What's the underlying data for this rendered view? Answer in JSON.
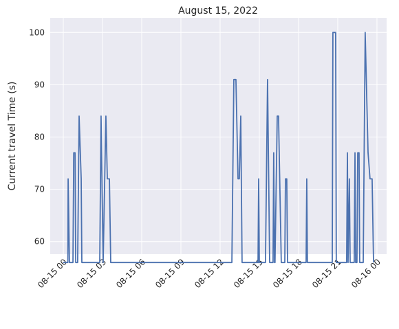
{
  "chart_data": {
    "type": "line",
    "title": "August 15, 2022",
    "y_label": "Current travel Time (s)",
    "x": [
      0,
      0.35,
      0.37,
      0.47,
      0.74,
      0.8,
      0.9,
      0.95,
      1.1,
      1.21,
      1.37,
      1.42,
      2.79,
      2.89,
      3.05,
      3.26,
      3.37,
      3.53,
      3.63,
      12.9,
      13.05,
      13.21,
      13.37,
      13.47,
      13.58,
      13.68,
      14.9,
      14.95,
      15.0,
      15.47,
      15.63,
      15.79,
      16.05,
      16.1,
      16.16,
      16.2,
      16.37,
      16.47,
      16.68,
      16.95,
      17.0,
      17.1,
      17.16,
      18.58,
      18.63,
      18.68,
      20.58,
      20.63,
      20.84,
      20.89,
      21.68,
      21.74,
      21.79,
      21.89,
      21.95,
      22.26,
      22.32,
      22.37,
      22.47,
      22.53,
      22.63,
      22.68,
      22.95,
      23.1,
      23.32,
      23.47,
      23.63,
      23.74
    ],
    "series": [
      {
        "name": "Current travel Time (s)",
        "color": "#4c72b0",
        "values": [
          56,
          56,
          72,
          56,
          56,
          77,
          77,
          56,
          56,
          84,
          72,
          56,
          56,
          84,
          56,
          84,
          72,
          72,
          56,
          56,
          91,
          91,
          72,
          72,
          84,
          56,
          56,
          72,
          56,
          56,
          91,
          56,
          56,
          77,
          56,
          56,
          84,
          84,
          56,
          56,
          72,
          72,
          56,
          56,
          72,
          56,
          56,
          100,
          100,
          56,
          56,
          77,
          56,
          72,
          56,
          56,
          77,
          56,
          56,
          77,
          77,
          56,
          56,
          100,
          77,
          72,
          72,
          56
        ]
      }
    ],
    "xlim": [
      -1.0,
      24.74
    ],
    "ylim": [
      57.6,
      102.8
    ],
    "xticks": [
      {
        "value": 0,
        "label": "08-15 00"
      },
      {
        "value": 3,
        "label": "08-15 03"
      },
      {
        "value": 6,
        "label": "08-15 06"
      },
      {
        "value": 9,
        "label": "08-15 09"
      },
      {
        "value": 12,
        "label": "08-15 12"
      },
      {
        "value": 15,
        "label": "08-15 15"
      },
      {
        "value": 18,
        "label": "08-15 18"
      },
      {
        "value": 21,
        "label": "08-15 21"
      },
      {
        "value": 24,
        "label": "08-16 00"
      }
    ],
    "yticks": [
      60,
      70,
      80,
      90,
      100
    ],
    "grid": true
  }
}
